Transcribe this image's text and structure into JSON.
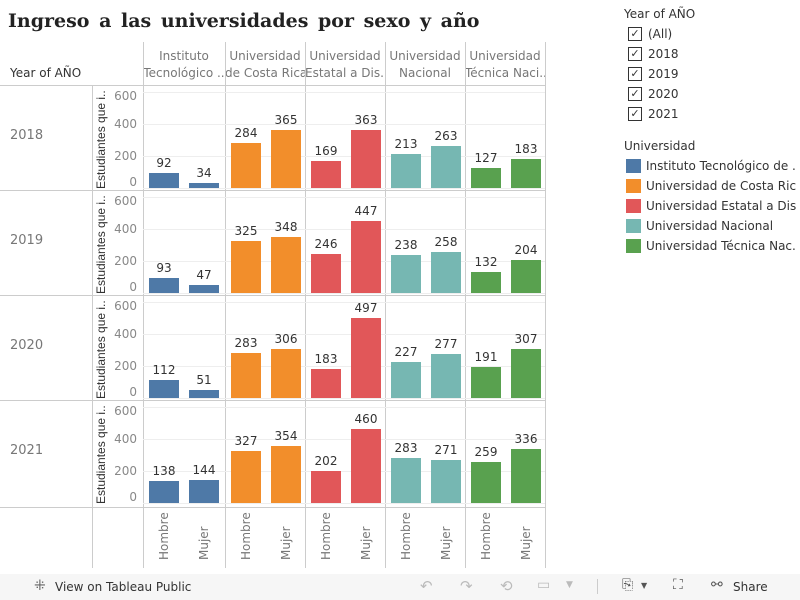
{
  "title": "Ingreso a las universidades por sexo y año",
  "row_header": "Year of AÑO",
  "y_axis_title": "Estudiantes que i..",
  "chart_data": {
    "type": "bar",
    "title": "Ingreso a las universidades por sexo y año",
    "ylabel": "Estudiantes que i..",
    "ylim": [
      0,
      600
    ],
    "yticks": [
      "0",
      "200",
      "400",
      "600"
    ],
    "years": [
      "2018",
      "2019",
      "2020",
      "2021"
    ],
    "universities": [
      {
        "name": "Instituto Tecnológico ..",
        "header": [
          "Instituto",
          "Tecnológico .."
        ],
        "color": "#4e79a7"
      },
      {
        "name": "Universidad de Costa Rica",
        "header": [
          "Universidad",
          "de Costa Rica"
        ],
        "color": "#f28e2b"
      },
      {
        "name": "Universidad Estatal a Dis..",
        "header": [
          "Universidad",
          "Estatal a Dis.."
        ],
        "color": "#e15759"
      },
      {
        "name": "Universidad Nacional",
        "header": [
          "Universidad",
          "Nacional"
        ],
        "color": "#76b7b2"
      },
      {
        "name": "Universidad Técnica Naci..",
        "header": [
          "Universidad",
          "Técnica Naci.."
        ],
        "color": "#59a14f"
      }
    ],
    "sexes": [
      "Hombre",
      "Mujer"
    ],
    "values": {
      "2018": [
        [
          92,
          34
        ],
        [
          284,
          365
        ],
        [
          169,
          363
        ],
        [
          213,
          263
        ],
        [
          127,
          183
        ]
      ],
      "2019": [
        [
          93,
          47
        ],
        [
          325,
          348
        ],
        [
          246,
          447
        ],
        [
          238,
          258
        ],
        [
          132,
          204
        ]
      ],
      "2020": [
        [
          112,
          51
        ],
        [
          283,
          306
        ],
        [
          183,
          497
        ],
        [
          227,
          277
        ],
        [
          191,
          307
        ]
      ],
      "2021": [
        [
          138,
          144
        ],
        [
          327,
          354
        ],
        [
          202,
          460
        ],
        [
          283,
          271
        ],
        [
          259,
          336
        ]
      ]
    }
  },
  "filter": {
    "title": "Year of AÑO",
    "items": [
      "(All)",
      "2018",
      "2019",
      "2020",
      "2021"
    ]
  },
  "legend": {
    "title": "Universidad",
    "items": [
      {
        "label": "Instituto Tecnológico de ...",
        "color": "#4e79a7"
      },
      {
        "label": "Universidad de Costa Rica",
        "color": "#f28e2b"
      },
      {
        "label": "Universidad Estatal a Dis...",
        "color": "#e15759"
      },
      {
        "label": "Universidad Nacional",
        "color": "#76b7b2"
      },
      {
        "label": "Universidad Técnica Nac...",
        "color": "#59a14f"
      }
    ]
  },
  "toolbar": {
    "view_label": "View on Tableau Public",
    "share_label": "Share"
  }
}
